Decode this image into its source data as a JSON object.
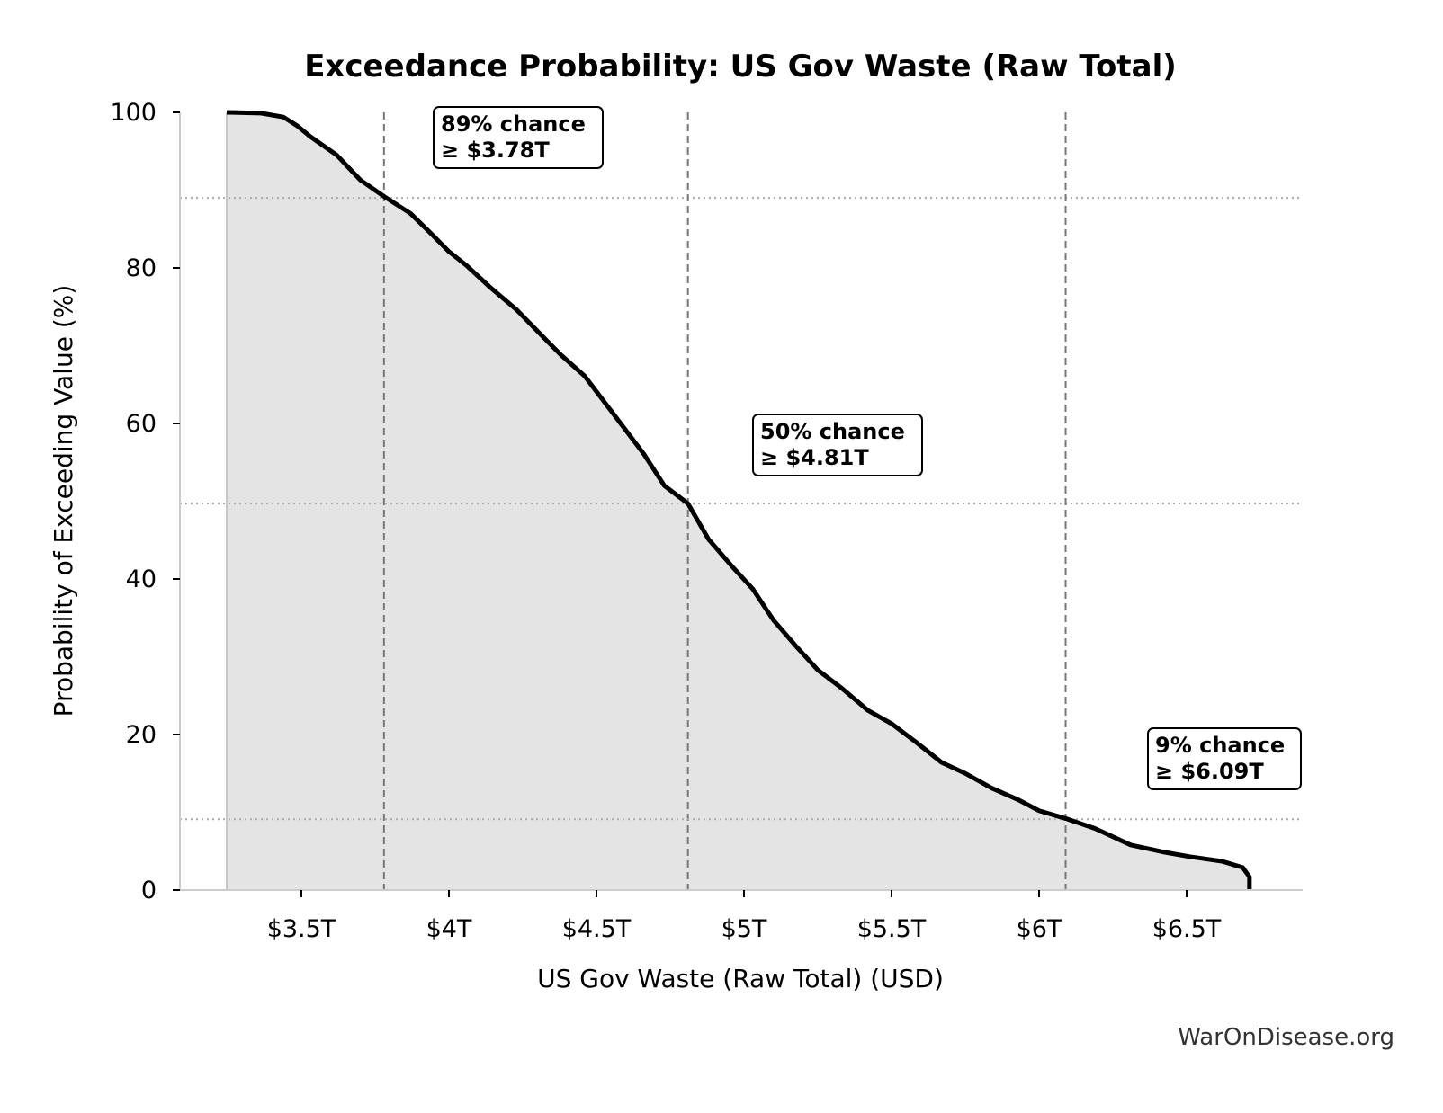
{
  "chart_data": {
    "type": "area",
    "title": "Exceedance Probability: US Gov Waste (Raw Total)",
    "xlabel": "US Gov Waste (Raw Total) (USD)",
    "ylabel": "Probability of Exceeding Value (%)",
    "xlim": [
      3.1,
      6.88
    ],
    "ylim": [
      0,
      100
    ],
    "x_ticks": [
      3.5,
      4,
      4.5,
      5,
      5.5,
      6,
      6.5
    ],
    "x_tick_labels": [
      "$3.5T",
      "$4T",
      "$4.5T",
      "$5T",
      "$5.5T",
      "$6T",
      "$6.5T"
    ],
    "y_ticks": [
      0,
      20,
      40,
      60,
      80,
      100
    ],
    "y_tick_labels": [
      "0",
      "20",
      "40",
      "60",
      "80",
      "100"
    ],
    "grid": false,
    "colors": {
      "line": "#000000",
      "fill": "#e4e4e4",
      "reference": "#777777",
      "hline": "#aaaaaa"
    },
    "series": [
      {
        "x": [
          3.247,
          3.363,
          3.439,
          3.485,
          3.53,
          3.62,
          3.7,
          3.78,
          3.87,
          3.94,
          4.0,
          4.06,
          4.14,
          4.23,
          4.32,
          4.38,
          4.46,
          4.51,
          4.58,
          4.66,
          4.73,
          4.81,
          4.88,
          4.96,
          5.03,
          5.1,
          5.18,
          5.25,
          5.33,
          5.42,
          5.5,
          5.58,
          5.67,
          5.75,
          5.84,
          5.93,
          6.0,
          6.09,
          6.19,
          6.31,
          6.42,
          6.51,
          6.62,
          6.69,
          6.713,
          6.713
        ],
        "y": [
          100,
          99.9,
          99.4,
          98.3,
          96.9,
          94.5,
          91.3,
          89.2,
          87.0,
          84.4,
          82.1,
          80.3,
          77.5,
          74.6,
          71.1,
          68.8,
          66.1,
          63.6,
          60.1,
          56.1,
          52.0,
          49.7,
          45.1,
          41.6,
          38.7,
          34.7,
          31.2,
          28.3,
          26.0,
          23.1,
          21.4,
          19.1,
          16.4,
          15.0,
          13.1,
          11.6,
          10.2,
          9.2,
          7.9,
          5.8,
          4.9,
          4.3,
          3.7,
          2.9,
          1.7,
          0
        ]
      }
    ],
    "reference_lines": [
      {
        "x": 3.78,
        "y": 89,
        "label_line1": "89% chance",
        "label_line2": "≥ $3.78T"
      },
      {
        "x": 4.81,
        "y": 49.7,
        "label_line1": "50% chance",
        "label_line2": "≥ $4.81T"
      },
      {
        "x": 6.09,
        "y": 9.1,
        "label_line1": "9% chance",
        "label_line2": "≥ $6.09T"
      }
    ]
  },
  "footer": {
    "source": "WarOnDisease.org"
  }
}
